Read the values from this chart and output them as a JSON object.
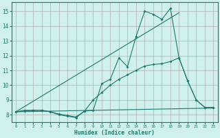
{
  "xlabel": "Humidex (Indice chaleur)",
  "bg_color": "#cff0ec",
  "grid_color": "#b0b0b0",
  "line_color": "#1a7a6e",
  "xlim": [
    -0.5,
    23.5
  ],
  "ylim": [
    7.5,
    15.6
  ],
  "xticks": [
    0,
    1,
    2,
    3,
    4,
    5,
    6,
    7,
    8,
    9,
    10,
    11,
    12,
    13,
    14,
    15,
    16,
    17,
    18,
    19,
    20,
    21,
    22,
    23
  ],
  "yticks": [
    8,
    9,
    10,
    11,
    12,
    13,
    14,
    15
  ],
  "line1_x": [
    0,
    1,
    2,
    3,
    4,
    5,
    6,
    7,
    8,
    9,
    10,
    11,
    12,
    13,
    14,
    15,
    16,
    17,
    18,
    19,
    20,
    21,
    22,
    23
  ],
  "line1_y": [
    8.2,
    8.3,
    8.3,
    8.3,
    8.2,
    8.0,
    7.9,
    7.8,
    8.25,
    8.3,
    10.1,
    10.4,
    11.85,
    11.25,
    13.3,
    15.0,
    14.8,
    14.45,
    15.2,
    11.85,
    10.3,
    9.0,
    8.5,
    8.5
  ],
  "line2_x": [
    0,
    1,
    2,
    3,
    4,
    5,
    6,
    7,
    8,
    9,
    10,
    11,
    12,
    13,
    14,
    15,
    16,
    17,
    18,
    19,
    20,
    21,
    22,
    23
  ],
  "line2_y": [
    8.2,
    8.25,
    8.3,
    8.3,
    8.2,
    8.05,
    7.95,
    7.85,
    8.25,
    9.0,
    9.5,
    10.0,
    10.4,
    10.7,
    11.0,
    11.3,
    11.4,
    11.45,
    11.6,
    11.85,
    10.3,
    9.0,
    8.5,
    8.5
  ],
  "line3_x": [
    0,
    23
  ],
  "line3_y": [
    8.2,
    8.45
  ],
  "line4_x": [
    0,
    19
  ],
  "line4_y": [
    8.2,
    14.9
  ]
}
